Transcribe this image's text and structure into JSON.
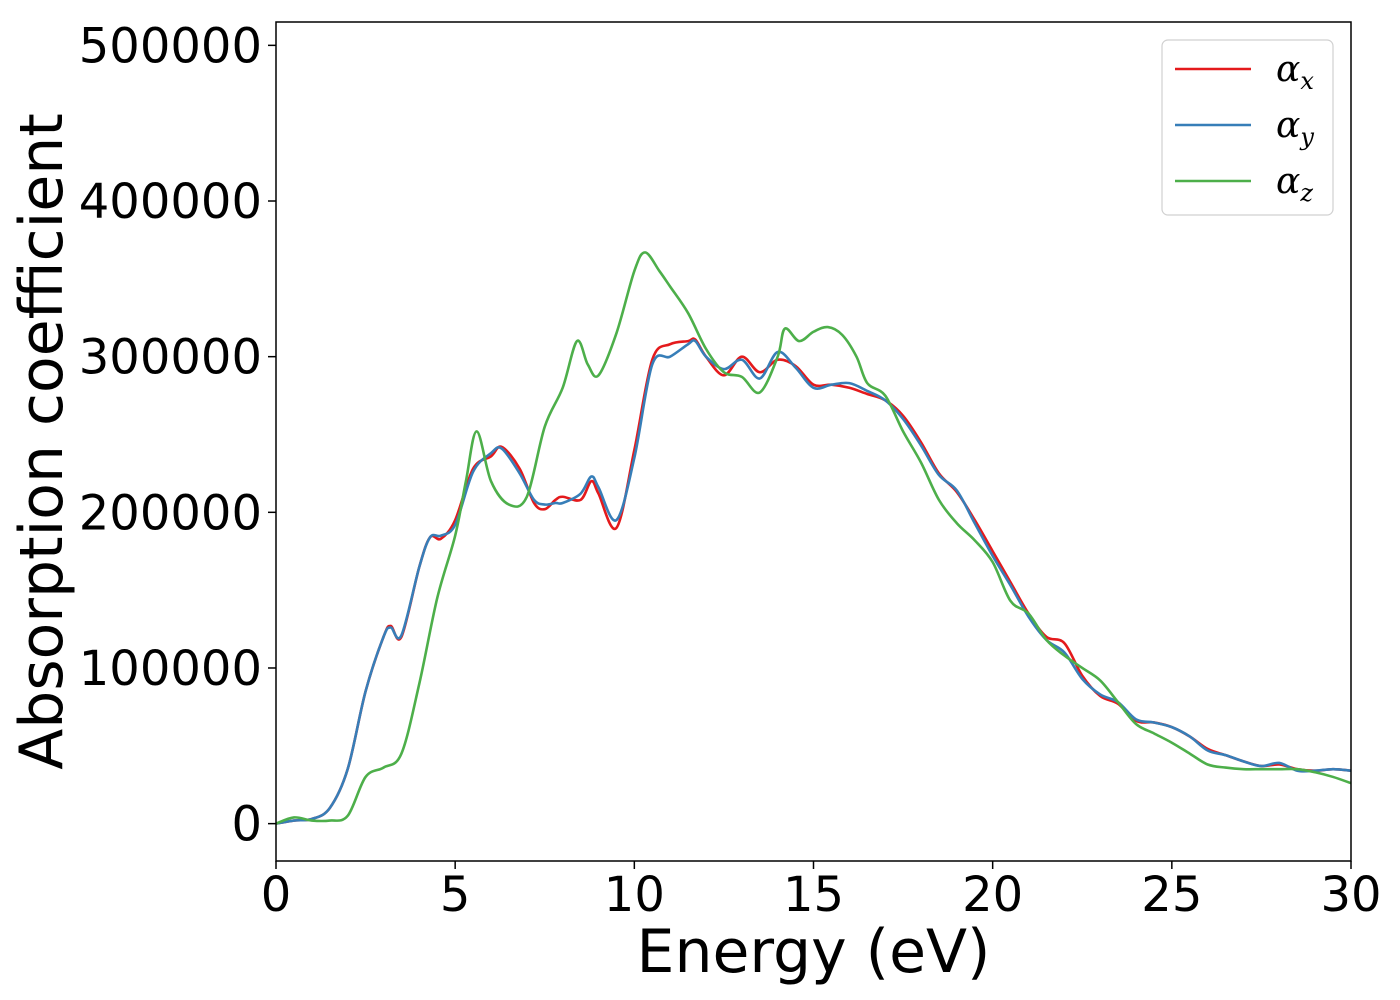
{
  "chart_data": {
    "type": "line",
    "title": "",
    "xlabel": "Energy (eV)",
    "ylabel": "Absorption coefficient",
    "xlim": [
      0,
      30
    ],
    "ylim": [
      -24000,
      515000
    ],
    "xticks": [
      0,
      5,
      10,
      15,
      20,
      25,
      30
    ],
    "yticks": [
      0,
      100000,
      200000,
      300000,
      400000,
      500000
    ],
    "xtick_labels": [
      "0",
      "5",
      "10",
      "15",
      "20",
      "25",
      "30"
    ],
    "ytick_labels": [
      "0",
      "100000",
      "200000",
      "300000",
      "400000",
      "500000"
    ],
    "grid": false,
    "legend_position": "top-right",
    "series": [
      {
        "name": "α_x",
        "symbol": "α",
        "subscript": "x",
        "color": "#e41a1c",
        "x": [
          0,
          0.5,
          1.0,
          1.5,
          2.0,
          2.5,
          3.0,
          3.2,
          3.5,
          4.0,
          4.3,
          4.6,
          5.0,
          5.5,
          6.0,
          6.3,
          6.8,
          7.2,
          7.5,
          7.8,
          8.0,
          8.5,
          8.8,
          9.0,
          9.5,
          10.0,
          10.5,
          11.0,
          11.5,
          11.7,
          12.0,
          12.5,
          13.0,
          13.5,
          14.0,
          14.5,
          15.0,
          15.5,
          16.0,
          16.5,
          17.0,
          17.5,
          18.0,
          18.5,
          19.0,
          19.5,
          20.0,
          20.5,
          21.0,
          21.5,
          22.0,
          22.5,
          23.0,
          23.5,
          24.0,
          24.5,
          25.0,
          25.5,
          26.0,
          26.5,
          27.0,
          27.5,
          28.0,
          28.5,
          29.0,
          29.5,
          30.0
        ],
        "y": [
          0,
          2000,
          3000,
          10000,
          35000,
          85000,
          120000,
          127000,
          120000,
          165000,
          184000,
          183000,
          195000,
          228000,
          236000,
          242000,
          228000,
          206000,
          202000,
          208000,
          210000,
          208000,
          220000,
          212000,
          190000,
          240000,
          298000,
          308000,
          310000,
          311000,
          300000,
          288000,
          300000,
          290000,
          298000,
          294000,
          282000,
          282000,
          280000,
          276000,
          272000,
          262000,
          245000,
          225000,
          213000,
          195000,
          175000,
          155000,
          135000,
          120000,
          116000,
          95000,
          82000,
          77000,
          66000,
          65000,
          62000,
          56000,
          48000,
          44000,
          40000,
          37000,
          38000,
          35000,
          34000,
          35000,
          34000
        ]
      },
      {
        "name": "α_y",
        "symbol": "α",
        "subscript": "y",
        "color": "#377eb8",
        "x": [
          0,
          0.5,
          1.0,
          1.5,
          2.0,
          2.5,
          3.0,
          3.2,
          3.5,
          4.0,
          4.3,
          4.6,
          5.0,
          5.5,
          6.0,
          6.3,
          6.8,
          7.2,
          7.5,
          7.8,
          8.0,
          8.5,
          8.8,
          9.0,
          9.5,
          10.0,
          10.5,
          11.0,
          11.5,
          11.7,
          12.0,
          12.5,
          13.0,
          13.5,
          14.0,
          14.5,
          15.0,
          15.5,
          16.0,
          16.5,
          17.0,
          17.5,
          18.0,
          18.5,
          19.0,
          19.5,
          20.0,
          20.5,
          21.0,
          21.5,
          22.0,
          22.5,
          23.0,
          23.5,
          24.0,
          24.5,
          25.0,
          25.5,
          26.0,
          26.5,
          27.0,
          27.5,
          28.0,
          28.5,
          29.0,
          29.5,
          30.0
        ],
        "y": [
          0,
          2000,
          3000,
          10000,
          35000,
          85000,
          120000,
          126000,
          121000,
          165000,
          184000,
          185000,
          192000,
          226000,
          238000,
          241000,
          225000,
          208000,
          205000,
          206000,
          206000,
          212000,
          223000,
          216000,
          195000,
          235000,
          295000,
          300000,
          308000,
          310000,
          300000,
          292000,
          298000,
          286000,
          303000,
          293000,
          280000,
          282000,
          283000,
          278000,
          272000,
          260000,
          243000,
          224000,
          214000,
          193000,
          172000,
          153000,
          133000,
          118000,
          110000,
          93000,
          83000,
          78000,
          67000,
          65000,
          62000,
          56000,
          47000,
          44000,
          40000,
          37000,
          39000,
          34000,
          34000,
          35000,
          34000
        ]
      },
      {
        "name": "α_z",
        "symbol": "α",
        "subscript": "z",
        "color": "#4daf4a",
        "x": [
          0,
          0.5,
          1.0,
          1.5,
          2.0,
          2.5,
          3.0,
          3.5,
          4.0,
          4.5,
          5.0,
          5.3,
          5.6,
          6.0,
          6.5,
          7.0,
          7.5,
          8.0,
          8.4,
          8.7,
          9.0,
          9.5,
          10.0,
          10.3,
          10.7,
          11.0,
          11.5,
          12.0,
          12.5,
          13.0,
          13.5,
          14.0,
          14.2,
          14.6,
          15.0,
          15.4,
          15.8,
          16.2,
          16.5,
          17.0,
          17.5,
          18.0,
          18.5,
          19.0,
          19.5,
          20.0,
          20.5,
          21.0,
          21.5,
          22.0,
          22.5,
          23.0,
          23.5,
          24.0,
          24.5,
          25.0,
          25.5,
          26.0,
          26.5,
          27.0,
          27.5,
          28.0,
          28.5,
          29.0,
          29.5,
          30.0
        ],
        "y": [
          0,
          4000,
          2000,
          2000,
          5000,
          30000,
          36000,
          45000,
          90000,
          145000,
          185000,
          220000,
          252000,
          220000,
          205000,
          210000,
          255000,
          280000,
          310000,
          295000,
          288000,
          315000,
          355000,
          367000,
          355000,
          345000,
          328000,
          305000,
          290000,
          287000,
          277000,
          300000,
          318000,
          310000,
          316000,
          319000,
          314000,
          300000,
          283000,
          275000,
          252000,
          232000,
          208000,
          193000,
          182000,
          168000,
          143000,
          135000,
          118000,
          108000,
          100000,
          92000,
          78000,
          64000,
          58000,
          52000,
          45000,
          38000,
          36000,
          35000,
          35000,
          35000,
          35000,
          33000,
          30000,
          26000
        ]
      }
    ]
  }
}
